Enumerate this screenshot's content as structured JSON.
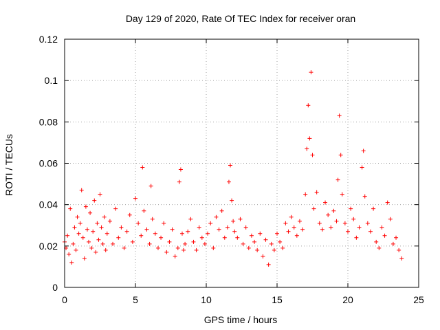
{
  "chart_data": {
    "type": "scatter",
    "title": "Day 129 of 2020, Rate Of TEC Index for receiver oran",
    "xlabel": "GPS time / hours",
    "ylabel": "ROTI / TECUs",
    "xlim": [
      0,
      25
    ],
    "ylim": [
      0,
      0.12
    ],
    "xticks": [
      0,
      5,
      10,
      15,
      20,
      25
    ],
    "yticks": [
      0,
      0.02,
      0.04,
      0.06,
      0.08,
      0.1,
      0.12
    ],
    "xtick_labels": [
      "0",
      "5",
      "10",
      "15",
      "20",
      "25"
    ],
    "ytick_labels": [
      "0",
      "0.02",
      "0.04",
      "0.06",
      "0.08",
      "0.1",
      "0.12"
    ],
    "grid": true,
    "marker": "plus",
    "color": "#ff0000",
    "series": [
      {
        "x": [
          0.0,
          0.1,
          0.2,
          0.3,
          0.4,
          0.5,
          0.6,
          0.7,
          0.8,
          0.9,
          1.0,
          1.1,
          1.2,
          1.3,
          1.4,
          1.5,
          1.6,
          1.7,
          1.8,
          1.9,
          2.0,
          2.1,
          2.2,
          2.3,
          2.4,
          2.5,
          2.6,
          2.7,
          2.8,
          2.9,
          3.0,
          3.2,
          3.4,
          3.6,
          3.8,
          4.0,
          4.2,
          4.4,
          4.6,
          4.8,
          5.0,
          5.2,
          5.4,
          5.5,
          5.6,
          5.8,
          6.0,
          6.1,
          6.2,
          6.4,
          6.6,
          6.8,
          7.0,
          7.2,
          7.4,
          7.6,
          7.8,
          8.0,
          8.1,
          8.2,
          8.3,
          8.4,
          8.5,
          8.7,
          8.9,
          9.1,
          9.3,
          9.5,
          9.7,
          9.9,
          10.1,
          10.3,
          10.5,
          10.7,
          10.9,
          11.1,
          11.3,
          11.5,
          11.6,
          11.7,
          11.8,
          11.9,
          12.0,
          12.2,
          12.4,
          12.6,
          12.8,
          13.0,
          13.2,
          13.4,
          13.6,
          13.8,
          14.0,
          14.2,
          14.4,
          14.6,
          14.8,
          15.0,
          15.2,
          15.4,
          15.6,
          15.8,
          16.0,
          16.2,
          16.4,
          16.6,
          16.8,
          17.0,
          17.1,
          17.2,
          17.3,
          17.4,
          17.5,
          17.6,
          17.8,
          18.0,
          18.2,
          18.4,
          18.6,
          18.8,
          19.0,
          19.2,
          19.3,
          19.4,
          19.5,
          19.6,
          19.8,
          20.0,
          20.2,
          20.4,
          20.6,
          20.8,
          21.0,
          21.1,
          21.2,
          21.4,
          21.6,
          21.8,
          22.0,
          22.2,
          22.4,
          22.6,
          22.8,
          23.0,
          23.2,
          23.4,
          23.6,
          23.8
        ],
        "y": [
          0.022,
          0.019,
          0.025,
          0.016,
          0.038,
          0.012,
          0.021,
          0.029,
          0.018,
          0.034,
          0.026,
          0.031,
          0.047,
          0.024,
          0.014,
          0.039,
          0.028,
          0.022,
          0.036,
          0.019,
          0.027,
          0.042,
          0.017,
          0.031,
          0.023,
          0.045,
          0.029,
          0.021,
          0.034,
          0.018,
          0.026,
          0.032,
          0.021,
          0.038,
          0.024,
          0.029,
          0.019,
          0.027,
          0.035,
          0.022,
          0.043,
          0.031,
          0.025,
          0.058,
          0.037,
          0.028,
          0.021,
          0.049,
          0.033,
          0.026,
          0.019,
          0.024,
          0.031,
          0.017,
          0.022,
          0.028,
          0.015,
          0.019,
          0.051,
          0.057,
          0.026,
          0.018,
          0.021,
          0.027,
          0.033,
          0.022,
          0.018,
          0.029,
          0.024,
          0.021,
          0.026,
          0.031,
          0.019,
          0.034,
          0.028,
          0.037,
          0.024,
          0.029,
          0.051,
          0.059,
          0.042,
          0.032,
          0.027,
          0.024,
          0.033,
          0.021,
          0.029,
          0.019,
          0.025,
          0.022,
          0.018,
          0.026,
          0.015,
          0.023,
          0.011,
          0.021,
          0.018,
          0.026,
          0.022,
          0.019,
          0.031,
          0.027,
          0.034,
          0.029,
          0.025,
          0.032,
          0.028,
          0.045,
          0.067,
          0.088,
          0.072,
          0.104,
          0.064,
          0.038,
          0.046,
          0.031,
          0.028,
          0.041,
          0.035,
          0.029,
          0.037,
          0.032,
          0.052,
          0.083,
          0.064,
          0.045,
          0.031,
          0.027,
          0.038,
          0.033,
          0.024,
          0.029,
          0.058,
          0.066,
          0.044,
          0.031,
          0.027,
          0.038,
          0.022,
          0.019,
          0.029,
          0.025,
          0.041,
          0.033,
          0.021,
          0.024,
          0.018,
          0.014
        ]
      }
    ]
  }
}
